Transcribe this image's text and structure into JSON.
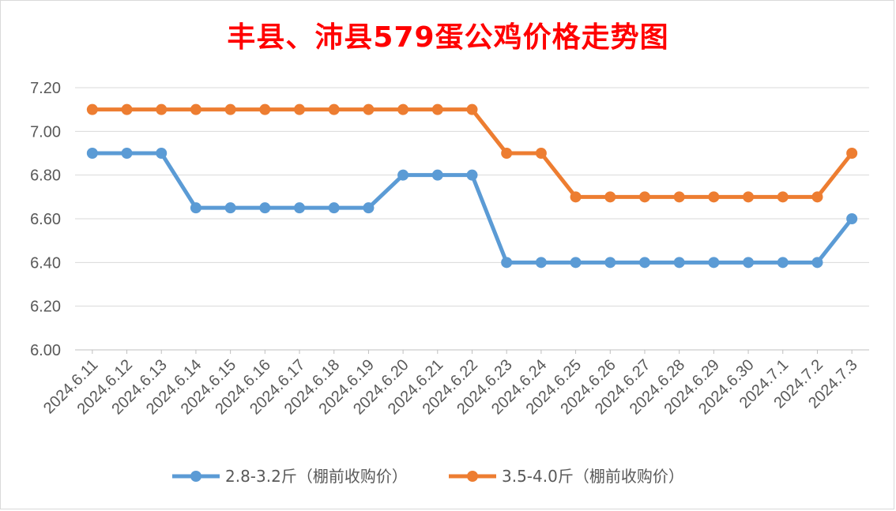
{
  "chart_data": {
    "type": "line",
    "title": "丰县、沛县579蛋公鸡价格走势图",
    "categories": [
      "2024.6.11",
      "2024.6.12",
      "2024.6.13",
      "2024.6.14",
      "2024.6.15",
      "2024.6.16",
      "2024.6.17",
      "2024.6.18",
      "2024.6.19",
      "2024.6.20",
      "2024.6.21",
      "2024.6.22",
      "2024.6.23",
      "2024.6.24",
      "2024.6.25",
      "2024.6.26",
      "2024.6.27",
      "2024.6.28",
      "2024.6.29",
      "2024.6.30",
      "2024.7.1",
      "2024.7.2",
      "2024.7.3"
    ],
    "series": [
      {
        "name": "2.8-3.2斤（棚前收购价）",
        "color": "#5b9bd5",
        "values": [
          6.9,
          6.9,
          6.9,
          6.65,
          6.65,
          6.65,
          6.65,
          6.65,
          6.65,
          6.8,
          6.8,
          6.8,
          6.4,
          6.4,
          6.4,
          6.4,
          6.4,
          6.4,
          6.4,
          6.4,
          6.4,
          6.4,
          6.6
        ]
      },
      {
        "name": "3.5-4.0斤（棚前收购价）",
        "color": "#ed7d31",
        "values": [
          7.1,
          7.1,
          7.1,
          7.1,
          7.1,
          7.1,
          7.1,
          7.1,
          7.1,
          7.1,
          7.1,
          7.1,
          6.9,
          6.9,
          6.7,
          6.7,
          6.7,
          6.7,
          6.7,
          6.7,
          6.7,
          6.7,
          6.9
        ]
      }
    ],
    "y_ticks": [
      "6.00",
      "6.20",
      "6.40",
      "6.60",
      "6.80",
      "7.00",
      "7.20"
    ],
    "ylim": [
      6.0,
      7.2
    ],
    "grid": true,
    "legend_position": "bottom"
  }
}
